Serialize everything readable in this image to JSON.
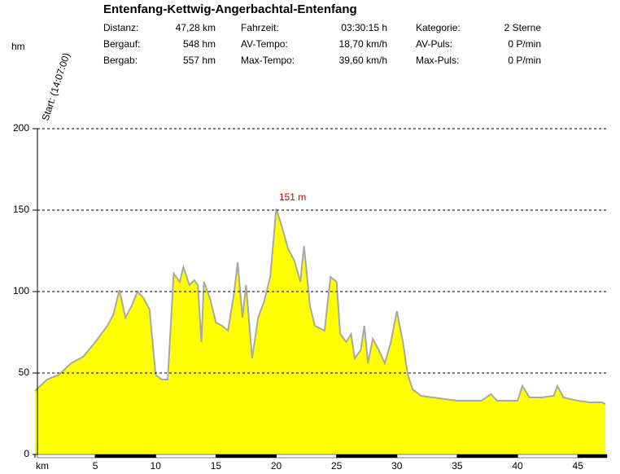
{
  "chart_data": {
    "type": "area",
    "title": "Entenfang-Kettwig-Angerbachtal-Entenfang",
    "stats": [
      [
        "Distanz:",
        "47,28 km",
        "Fahrzeit:",
        "03:30:15 h",
        "Kategorie:",
        "2 Sterne"
      ],
      [
        "Bergauf:",
        "548 hm",
        "AV-Tempo:",
        "18,70 km/h",
        "AV-Puls:",
        "0 P/min"
      ],
      [
        "Bergab:",
        "557 hm",
        "Max-Tempo:",
        "39,60 km/h",
        "Max-Puls:",
        "0 P/min"
      ]
    ],
    "y_unit": "hm",
    "start_label": "Start: (14:07:00)",
    "annotations": [
      {
        "x": 20,
        "y": 151,
        "label": "151 m",
        "color": "#cc0000"
      }
    ],
    "color": "#ffff00",
    "line_color": "#a8a8a8",
    "grid": true,
    "x": [
      0,
      1,
      2,
      3,
      4,
      5,
      6,
      6.5,
      7,
      7.5,
      8,
      8.5,
      9,
      9.5,
      10,
      10.5,
      11,
      11.5,
      12,
      12.3,
      12.8,
      13.2,
      13.5,
      13.8,
      14,
      14.5,
      15,
      15.5,
      16,
      16.5,
      16.8,
      17.2,
      17.5,
      18,
      18.5,
      19,
      19.5,
      20,
      20.5,
      21,
      21.5,
      22,
      22.3,
      22.8,
      23.2,
      24,
      24.5,
      25,
      25.3,
      25.8,
      26.2,
      26.5,
      27,
      27.3,
      27.6,
      28,
      28.5,
      29,
      29.5,
      30,
      30.5,
      30.9,
      31.3,
      32,
      33,
      34,
      35,
      36,
      37,
      37.8,
      38.3,
      39,
      40,
      40.4,
      41,
      42,
      43,
      43.3,
      43.8,
      45,
      46,
      47,
      47.28
    ],
    "values": [
      39,
      46,
      49,
      56,
      60,
      69,
      79,
      86,
      101,
      84,
      91,
      100,
      96,
      89,
      49,
      46,
      46,
      111,
      106,
      115,
      104,
      107,
      104,
      69,
      106,
      96,
      81,
      79,
      76,
      99,
      118,
      84,
      104,
      59,
      84,
      94,
      109,
      151,
      139,
      126,
      119,
      106,
      128,
      91,
      79,
      76,
      109,
      106,
      74,
      69,
      74,
      59,
      64,
      79,
      56,
      71,
      64,
      56,
      69,
      88,
      69,
      49,
      40,
      36,
      35,
      34,
      33,
      33,
      33,
      37,
      33,
      33,
      33,
      42,
      35,
      35,
      36,
      42,
      35,
      33,
      32,
      32,
      31
    ],
    "xlim": [
      0,
      47.28
    ],
    "ylim": [
      0,
      200
    ],
    "xticks": [
      {
        "value": 0,
        "label": "km"
      },
      5,
      10,
      15,
      20,
      25,
      30,
      35,
      40,
      45
    ],
    "yticks": [
      0,
      50,
      100,
      150,
      200
    ]
  }
}
